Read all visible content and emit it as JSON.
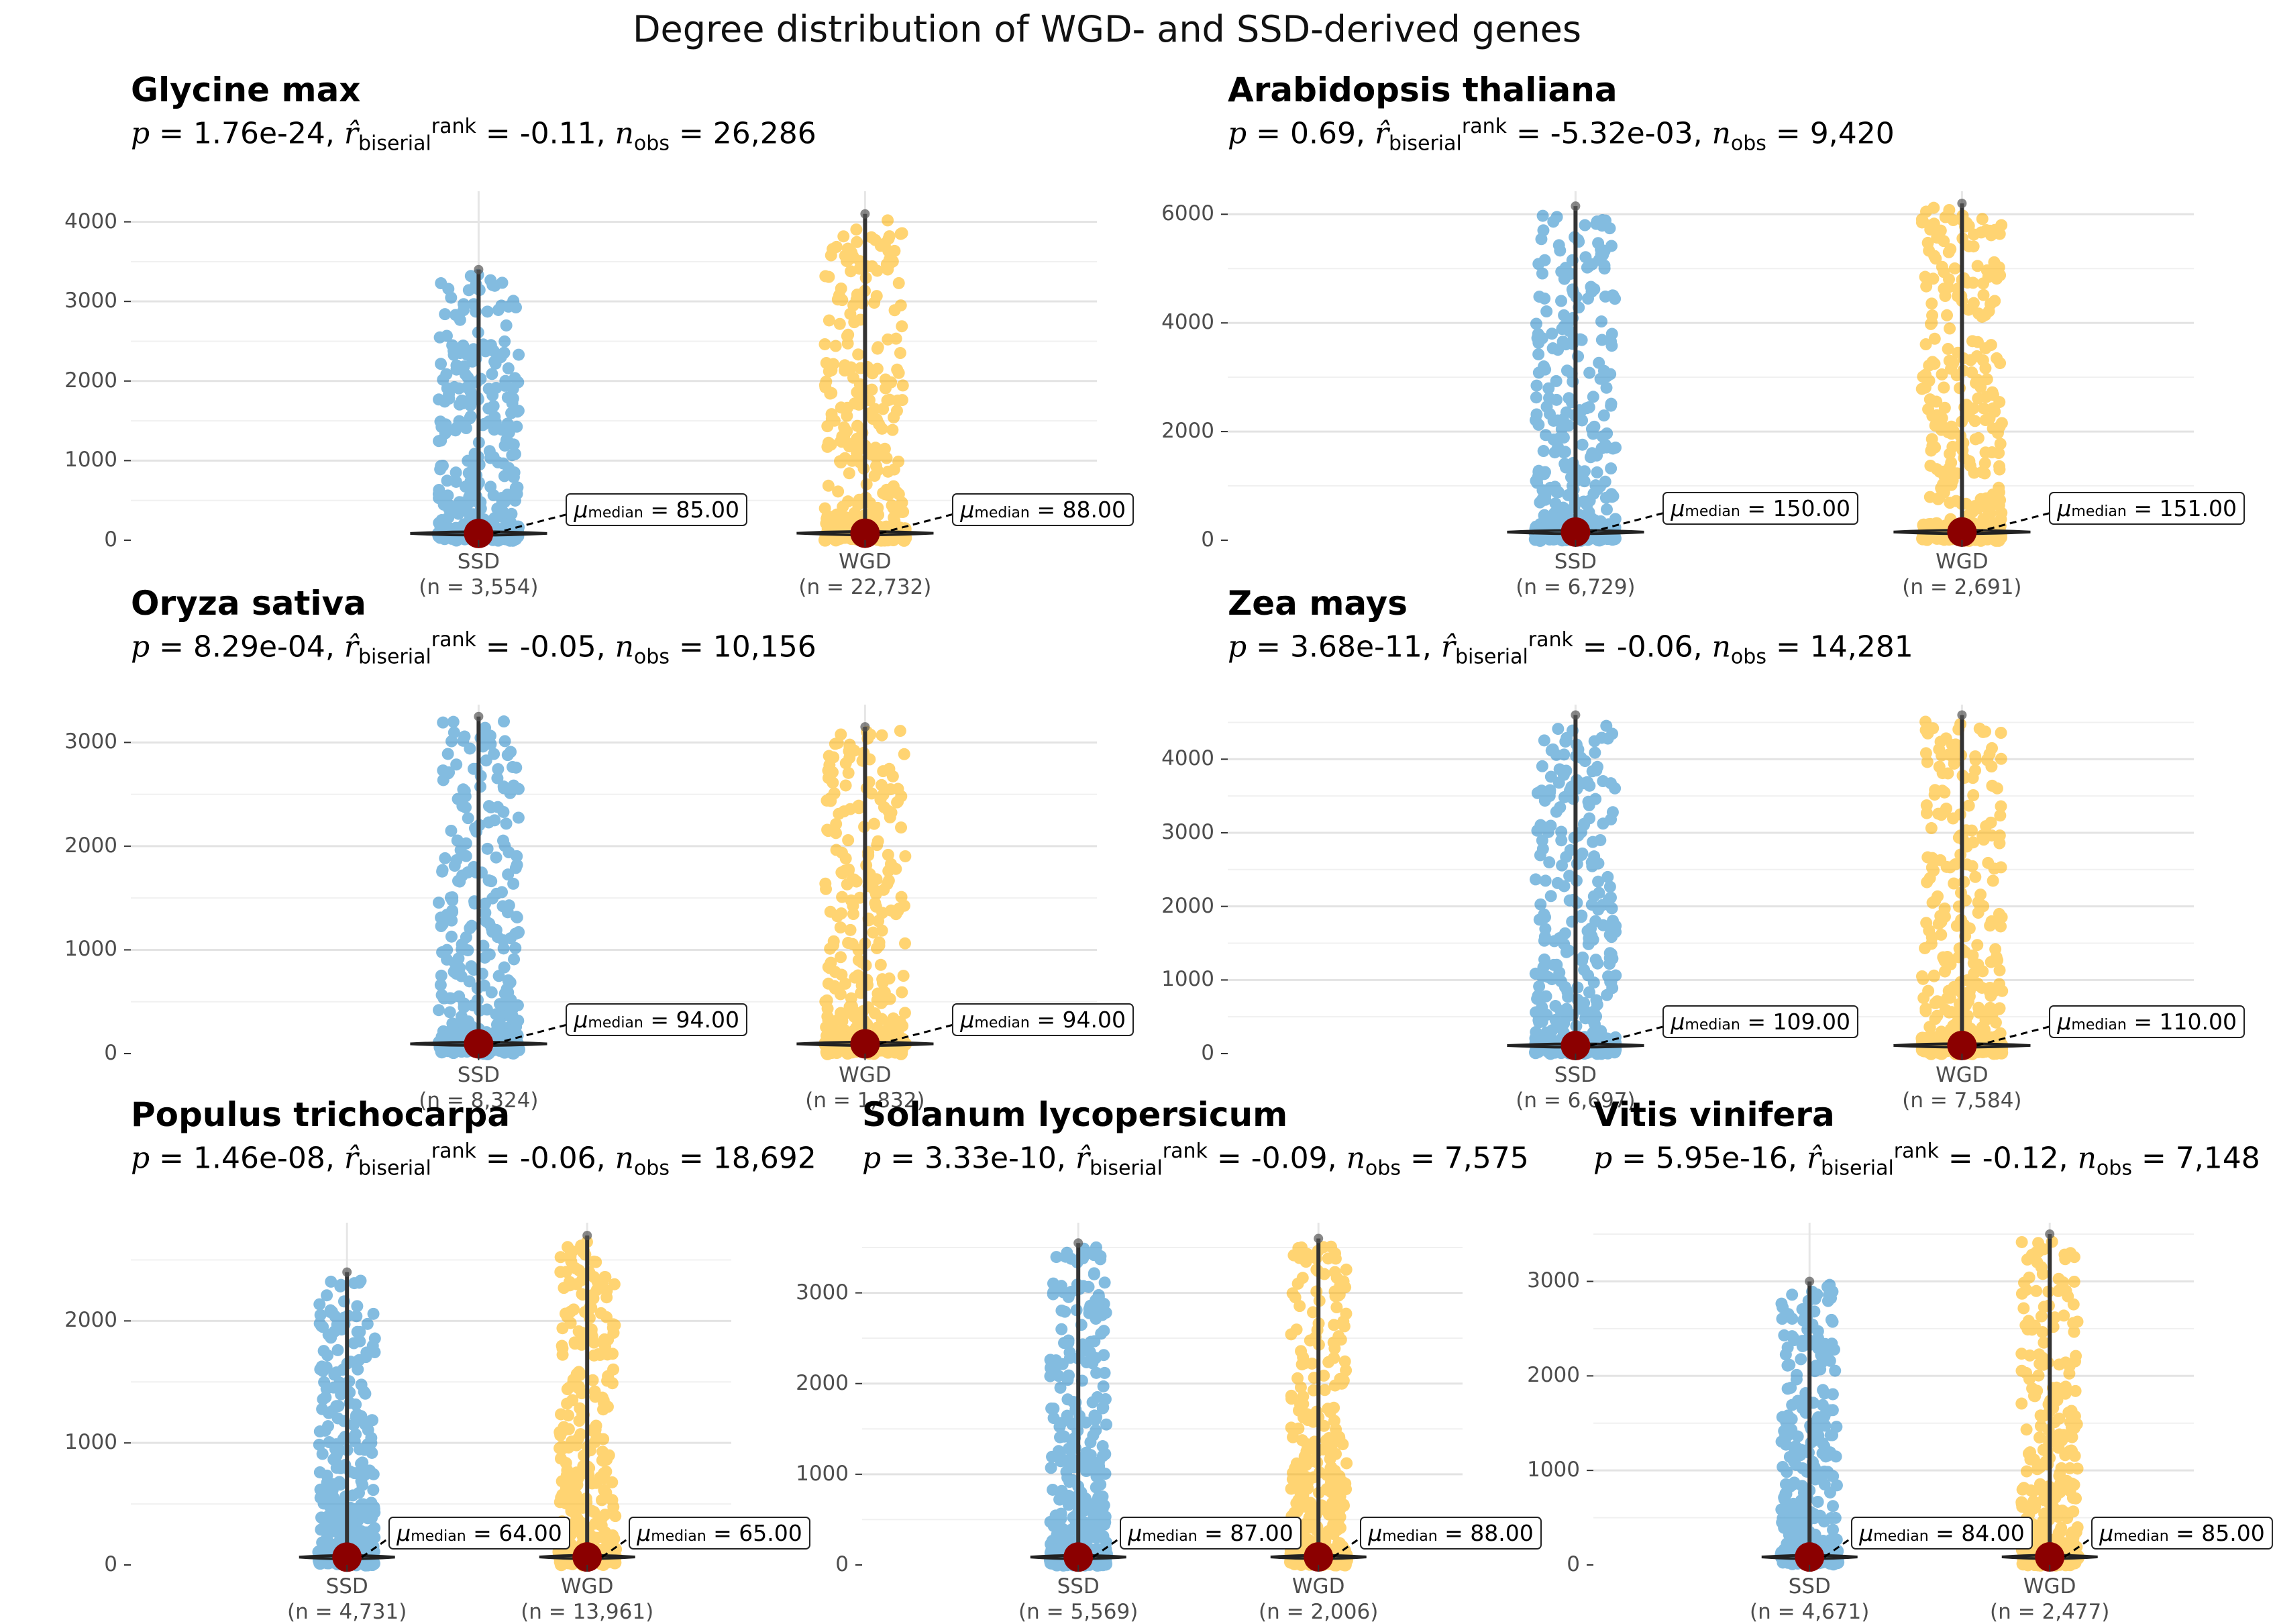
{
  "figure_title": "Degree distribution of WGD- and SSD-derived genes",
  "colors": {
    "SSD": "#1F86C8",
    "WGD": "#FFB100",
    "median_point": "#8B0000"
  },
  "chart_data": [
    {
      "type": "scatter",
      "title": "Glycine max",
      "stats": {
        "p": "1.76e-24",
        "r": "-0.11",
        "n_obs": "26,286"
      },
      "ylim": [
        0,
        4300
      ],
      "yticks": [
        0,
        1000,
        2000,
        3000,
        4000
      ],
      "groups": [
        {
          "name": "SSD",
          "n_label": "(n = 3,554)",
          "median": 85,
          "median_label": "85.00",
          "max": 3400
        },
        {
          "name": "WGD",
          "n_label": "(n = 22,732)",
          "median": 88,
          "median_label": "88.00",
          "max": 4100
        }
      ]
    },
    {
      "type": "scatter",
      "title": "Arabidopsis thaliana",
      "stats": {
        "p": "0.69",
        "r": "-5.32e-03",
        "n_obs": "9,420"
      },
      "ylim": [
        0,
        6300
      ],
      "yticks": [
        0,
        2000,
        4000,
        6000
      ],
      "groups": [
        {
          "name": "SSD",
          "n_label": "(n = 6,729)",
          "median": 150,
          "median_label": "150.00",
          "max": 6150
        },
        {
          "name": "WGD",
          "n_label": "(n = 2,691)",
          "median": 151,
          "median_label": "151.00",
          "max": 6200
        }
      ]
    },
    {
      "type": "scatter",
      "title": "Oryza sativa",
      "stats": {
        "p": "8.29e-04",
        "r": "-0.05",
        "n_obs": "10,156"
      },
      "ylim": [
        0,
        3300
      ],
      "yticks": [
        0,
        1000,
        2000,
        3000
      ],
      "groups": [
        {
          "name": "SSD",
          "n_label": "(n = 8,324)",
          "median": 94,
          "median_label": "94.00",
          "max": 3250
        },
        {
          "name": "WGD",
          "n_label": "(n = 1,832)",
          "median": 94,
          "median_label": "94.00",
          "max": 3150
        }
      ]
    },
    {
      "type": "scatter",
      "title": "Zea mays",
      "stats": {
        "p": "3.68e-11",
        "r": "-0.06",
        "n_obs": "14,281"
      },
      "ylim": [
        0,
        4650
      ],
      "yticks": [
        0,
        1000,
        2000,
        3000,
        4000
      ],
      "groups": [
        {
          "name": "SSD",
          "n_label": "(n = 6,697)",
          "median": 109,
          "median_label": "109.00",
          "max": 4600
        },
        {
          "name": "WGD",
          "n_label": "(n = 7,584)",
          "median": 110,
          "median_label": "110.00",
          "max": 4600
        }
      ]
    },
    {
      "type": "scatter",
      "title": "Populus trichocarpa",
      "stats": {
        "p": "1.46e-08",
        "r": "-0.06",
        "n_obs": "18,692"
      },
      "ylim": [
        0,
        2750
      ],
      "yticks": [
        0,
        1000,
        2000
      ],
      "groups": [
        {
          "name": "SSD",
          "n_label": "(n = 4,731)",
          "median": 64,
          "median_label": "64.00",
          "max": 2400
        },
        {
          "name": "WGD",
          "n_label": "(n = 13,961)",
          "median": 65,
          "median_label": "65.00",
          "max": 2700
        }
      ]
    },
    {
      "type": "scatter",
      "title": "Solanum lycopersicum",
      "stats": {
        "p": "3.33e-10",
        "r": "-0.09",
        "n_obs": "7,575"
      },
      "ylim": [
        0,
        3700
      ],
      "yticks": [
        0,
        1000,
        2000,
        3000
      ],
      "groups": [
        {
          "name": "SSD",
          "n_label": "(n = 5,569)",
          "median": 87,
          "median_label": "87.00",
          "max": 3550
        },
        {
          "name": "WGD",
          "n_label": "(n = 2,006)",
          "median": 88,
          "median_label": "88.00",
          "max": 3600
        }
      ]
    },
    {
      "type": "scatter",
      "title": "Vitis vinifera",
      "stats": {
        "p": "5.95e-16",
        "r": "-0.12",
        "n_obs": "7,148"
      },
      "ylim": [
        0,
        3550
      ],
      "yticks": [
        0,
        1000,
        2000,
        3000
      ],
      "groups": [
        {
          "name": "SSD",
          "n_label": "(n = 4,671)",
          "median": 84,
          "median_label": "84.00",
          "max": 3000
        },
        {
          "name": "WGD",
          "n_label": "(n = 2,477)",
          "median": 85,
          "median_label": "85.00",
          "max": 3500
        }
      ]
    }
  ]
}
